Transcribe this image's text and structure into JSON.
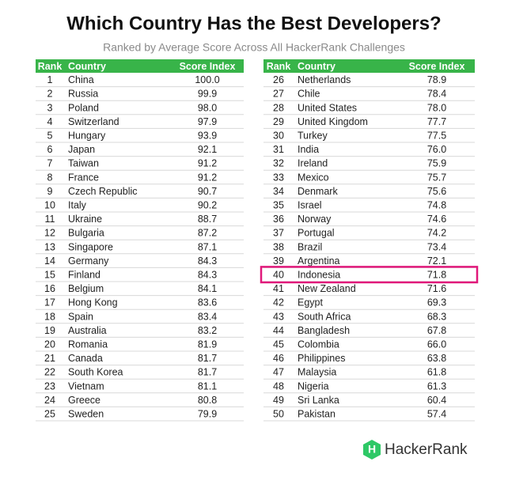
{
  "title": "Which Country Has the Best Developers?",
  "subtitle": "Ranked by Average Score Across All HackerRank Challenges",
  "highlight_rank": 40,
  "tables": [
    {
      "header": [
        "Rank",
        "Country",
        "Score Index"
      ],
      "rows": [
        [
          1,
          "China",
          "100.0"
        ],
        [
          2,
          "Russia",
          "99.9"
        ],
        [
          3,
          "Poland",
          "98.0"
        ],
        [
          4,
          "Switzerland",
          "97.9"
        ],
        [
          5,
          "Hungary",
          "93.9"
        ],
        [
          6,
          "Japan",
          "92.1"
        ],
        [
          7,
          "Taiwan",
          "91.2"
        ],
        [
          8,
          "France",
          "91.2"
        ],
        [
          9,
          "Czech Republic",
          "90.7"
        ],
        [
          10,
          "Italy",
          "90.2"
        ],
        [
          11,
          "Ukraine",
          "88.7"
        ],
        [
          12,
          "Bulgaria",
          "87.2"
        ],
        [
          13,
          "Singapore",
          "87.1"
        ],
        [
          14,
          "Germany",
          "84.3"
        ],
        [
          15,
          "Finland",
          "84.3"
        ],
        [
          16,
          "Belgium",
          "84.1"
        ],
        [
          17,
          "Hong Kong",
          "83.6"
        ],
        [
          18,
          "Spain",
          "83.4"
        ],
        [
          19,
          "Australia",
          "83.2"
        ],
        [
          20,
          "Romania",
          "81.9"
        ],
        [
          21,
          "Canada",
          "81.7"
        ],
        [
          22,
          "South Korea",
          "81.7"
        ],
        [
          23,
          "Vietnam",
          "81.1"
        ],
        [
          24,
          "Greece",
          "80.8"
        ],
        [
          25,
          "Sweden",
          "79.9"
        ]
      ]
    },
    {
      "header": [
        "Rank",
        "Country",
        "Score Index"
      ],
      "rows": [
        [
          26,
          "Netherlands",
          "78.9"
        ],
        [
          27,
          "Chile",
          "78.4"
        ],
        [
          28,
          "United States",
          "78.0"
        ],
        [
          29,
          "United Kingdom",
          "77.7"
        ],
        [
          30,
          "Turkey",
          "77.5"
        ],
        [
          31,
          "India",
          "76.0"
        ],
        [
          32,
          "Ireland",
          "75.9"
        ],
        [
          33,
          "Mexico",
          "75.7"
        ],
        [
          34,
          "Denmark",
          "75.6"
        ],
        [
          35,
          "Israel",
          "74.8"
        ],
        [
          36,
          "Norway",
          "74.6"
        ],
        [
          37,
          "Portugal",
          "74.2"
        ],
        [
          38,
          "Brazil",
          "73.4"
        ],
        [
          39,
          "Argentina",
          "72.1"
        ],
        [
          40,
          "Indonesia",
          "71.8"
        ],
        [
          41,
          "New Zealand",
          "71.6"
        ],
        [
          42,
          "Egypt",
          "69.3"
        ],
        [
          43,
          "South Africa",
          "68.3"
        ],
        [
          44,
          "Bangladesh",
          "67.8"
        ],
        [
          45,
          "Colombia",
          "66.0"
        ],
        [
          46,
          "Philippines",
          "63.8"
        ],
        [
          47,
          "Malaysia",
          "61.8"
        ],
        [
          48,
          "Nigeria",
          "61.3"
        ],
        [
          49,
          "Sri Lanka",
          "60.4"
        ],
        [
          50,
          "Pakistan",
          "57.4"
        ]
      ]
    }
  ],
  "logo": {
    "icon": "H",
    "text": "HackerRank"
  }
}
